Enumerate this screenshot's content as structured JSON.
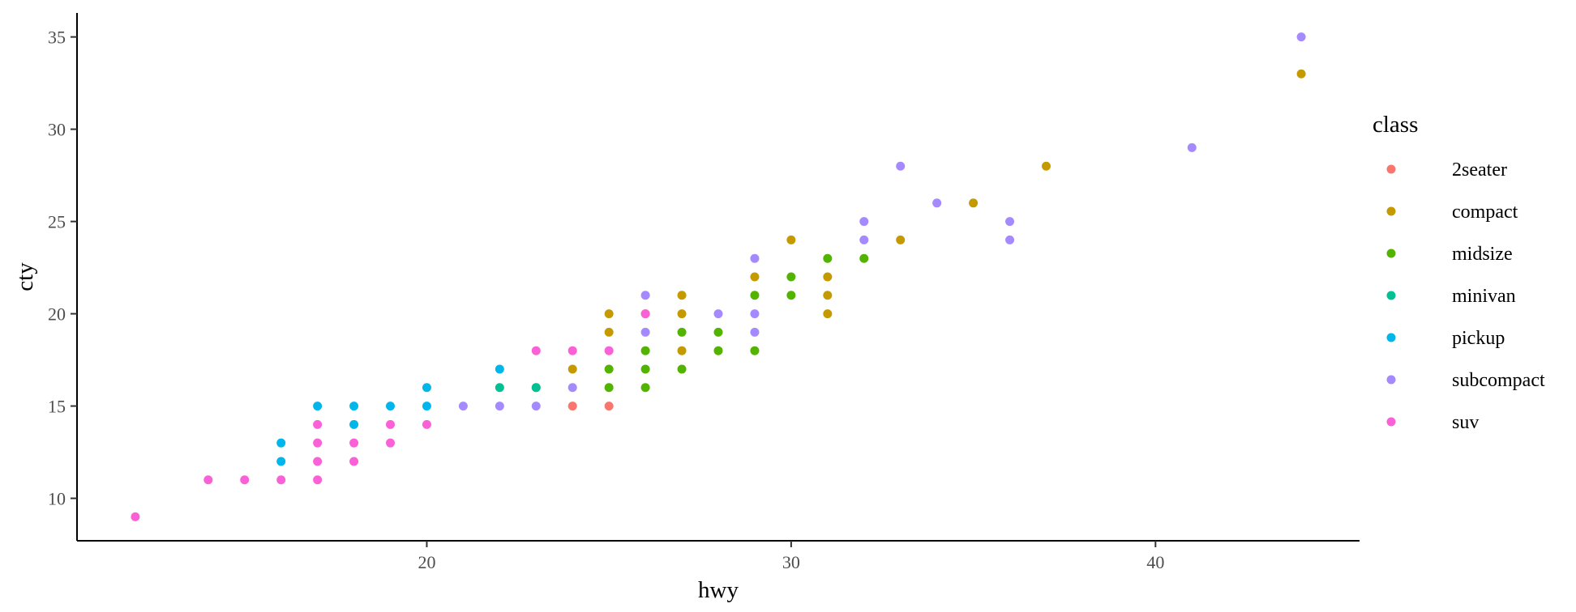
{
  "chart_data": {
    "type": "scatter",
    "xlabel": "hwy",
    "ylabel": "cty",
    "xlim": [
      10.4,
      45.6
    ],
    "ylim": [
      7.7,
      36.3
    ],
    "xticks": [
      20,
      30,
      40
    ],
    "yticks": [
      10,
      15,
      20,
      25,
      30,
      35
    ],
    "grid": false,
    "legend": {
      "title": "class",
      "placement": "right"
    },
    "series": [
      {
        "name": "2seater",
        "color": "#F8766D",
        "points": [
          [
            24,
            15
          ],
          [
            25,
            15
          ]
        ]
      },
      {
        "name": "compact",
        "color": "#C49A00",
        "points": [
          [
            23,
            16
          ],
          [
            24,
            17
          ],
          [
            25,
            19
          ],
          [
            25,
            20
          ],
          [
            26,
            20
          ],
          [
            27,
            18
          ],
          [
            27,
            20
          ],
          [
            27,
            21
          ],
          [
            29,
            22
          ],
          [
            30,
            24
          ],
          [
            31,
            20
          ],
          [
            31,
            21
          ],
          [
            31,
            22
          ],
          [
            33,
            24
          ],
          [
            35,
            26
          ],
          [
            37,
            28
          ],
          [
            44,
            33
          ]
        ]
      },
      {
        "name": "midsize",
        "color": "#53B400",
        "points": [
          [
            25,
            16
          ],
          [
            25,
            17
          ],
          [
            26,
            16
          ],
          [
            26,
            17
          ],
          [
            26,
            18
          ],
          [
            27,
            17
          ],
          [
            27,
            19
          ],
          [
            28,
            18
          ],
          [
            28,
            19
          ],
          [
            29,
            18
          ],
          [
            29,
            21
          ],
          [
            30,
            21
          ],
          [
            30,
            22
          ],
          [
            31,
            23
          ],
          [
            32,
            23
          ]
        ]
      },
      {
        "name": "minivan",
        "color": "#00C094",
        "points": [
          [
            22,
            16
          ],
          [
            23,
            16
          ]
        ]
      },
      {
        "name": "pickup",
        "color": "#00B6EB",
        "points": [
          [
            16,
            12
          ],
          [
            16,
            13
          ],
          [
            17,
            15
          ],
          [
            18,
            14
          ],
          [
            18,
            15
          ],
          [
            19,
            15
          ],
          [
            20,
            15
          ],
          [
            20,
            16
          ],
          [
            22,
            17
          ]
        ]
      },
      {
        "name": "subcompact",
        "color": "#A58AFF",
        "points": [
          [
            21,
            15
          ],
          [
            22,
            15
          ],
          [
            23,
            15
          ],
          [
            24,
            16
          ],
          [
            26,
            19
          ],
          [
            26,
            21
          ],
          [
            28,
            20
          ],
          [
            29,
            19
          ],
          [
            29,
            20
          ],
          [
            29,
            23
          ],
          [
            32,
            24
          ],
          [
            32,
            25
          ],
          [
            33,
            28
          ],
          [
            34,
            26
          ],
          [
            36,
            24
          ],
          [
            36,
            25
          ],
          [
            41,
            29
          ],
          [
            44,
            35
          ]
        ]
      },
      {
        "name": "suv",
        "color": "#FB61D7",
        "points": [
          [
            12,
            9
          ],
          [
            14,
            11
          ],
          [
            15,
            11
          ],
          [
            16,
            11
          ],
          [
            17,
            11
          ],
          [
            17,
            12
          ],
          [
            17,
            13
          ],
          [
            17,
            14
          ],
          [
            18,
            12
          ],
          [
            18,
            13
          ],
          [
            19,
            13
          ],
          [
            19,
            14
          ],
          [
            20,
            14
          ],
          [
            23,
            18
          ],
          [
            24,
            18
          ],
          [
            25,
            18
          ],
          [
            26,
            20
          ]
        ]
      }
    ]
  }
}
